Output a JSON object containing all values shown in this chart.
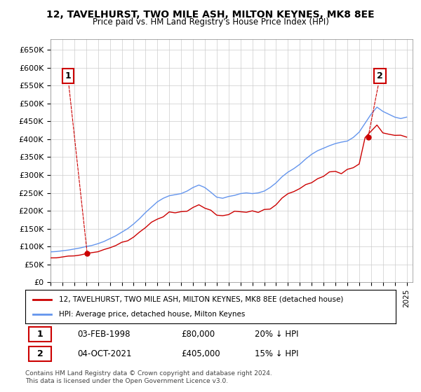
{
  "title": "12, TAVELHURST, TWO MILE ASH, MILTON KEYNES, MK8 8EE",
  "subtitle": "Price paid vs. HM Land Registry's House Price Index (HPI)",
  "legend_line1": "12, TAVELHURST, TWO MILE ASH, MILTON KEYNES, MK8 8EE (detached house)",
  "legend_line2": "HPI: Average price, detached house, Milton Keynes",
  "footnote": "Contains HM Land Registry data © Crown copyright and database right 2024.\nThis data is licensed under the Open Government Licence v3.0.",
  "annotation1_label": "1",
  "annotation1_date": "03-FEB-1998",
  "annotation1_price": "£80,000",
  "annotation1_hpi": "20% ↓ HPI",
  "annotation2_label": "2",
  "annotation2_date": "04-OCT-2021",
  "annotation2_price": "£405,000",
  "annotation2_hpi": "15% ↓ HPI",
  "sale1_x": 1998.09,
  "sale1_y": 80000,
  "sale2_x": 2021.75,
  "sale2_y": 405000,
  "hpi_color": "#6495ED",
  "sale_color": "#CC0000",
  "background_color": "#FFFFFF",
  "grid_color": "#CCCCCC",
  "ylim": [
    0,
    680000
  ],
  "xlim_start": 1995,
  "xlim_end": 2025.5
}
